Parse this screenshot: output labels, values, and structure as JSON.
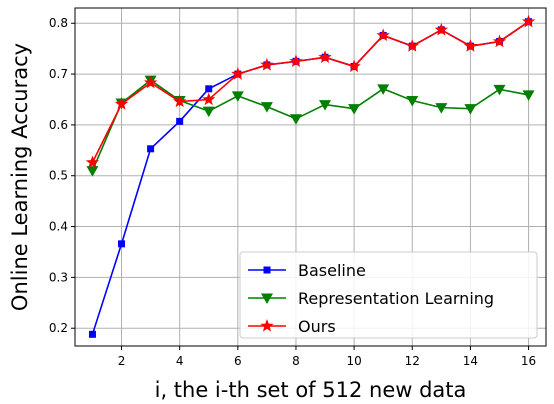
{
  "chart_data": {
    "type": "line",
    "xlabel": "i, the i-th set of 512 new data",
    "ylabel": "Online Learning Accuracy",
    "xlim": [
      0.4,
      16.6
    ],
    "ylim": [
      0.165,
      0.83
    ],
    "xticks": [
      2,
      4,
      6,
      8,
      10,
      12,
      14,
      16
    ],
    "yticks": [
      0.2,
      0.3,
      0.4,
      0.5,
      0.6,
      0.7,
      0.8
    ],
    "ytick_labels": [
      "0.2",
      "0.3",
      "0.4",
      "0.5",
      "0.6",
      "0.7",
      "0.8"
    ],
    "grid": true,
    "legend_position": "lower-right",
    "x": [
      1,
      2,
      3,
      4,
      5,
      6,
      7,
      8,
      9,
      10,
      11,
      12,
      13,
      14,
      15,
      16
    ],
    "series": [
      {
        "name": "Baseline",
        "color": "#0000ff",
        "marker": "square",
        "values": [
          0.188,
          0.366,
          0.553,
          0.607,
          0.671,
          0.7,
          0.718,
          0.725,
          0.733,
          0.715,
          0.776,
          0.755,
          0.787,
          0.755,
          0.764,
          0.803
        ]
      },
      {
        "name": "Representation Learning",
        "color": "#008000",
        "marker": "triangle-down",
        "values": [
          0.51,
          0.643,
          0.688,
          0.648,
          0.627,
          0.657,
          0.636,
          0.612,
          0.64,
          0.632,
          0.671,
          0.648,
          0.634,
          0.632,
          0.67,
          0.659
        ]
      },
      {
        "name": "Ours",
        "color": "#ff0000",
        "marker": "star",
        "values": [
          0.526,
          0.641,
          0.683,
          0.646,
          0.65,
          0.7,
          0.718,
          0.725,
          0.733,
          0.715,
          0.776,
          0.755,
          0.787,
          0.755,
          0.764,
          0.803
        ]
      }
    ]
  }
}
